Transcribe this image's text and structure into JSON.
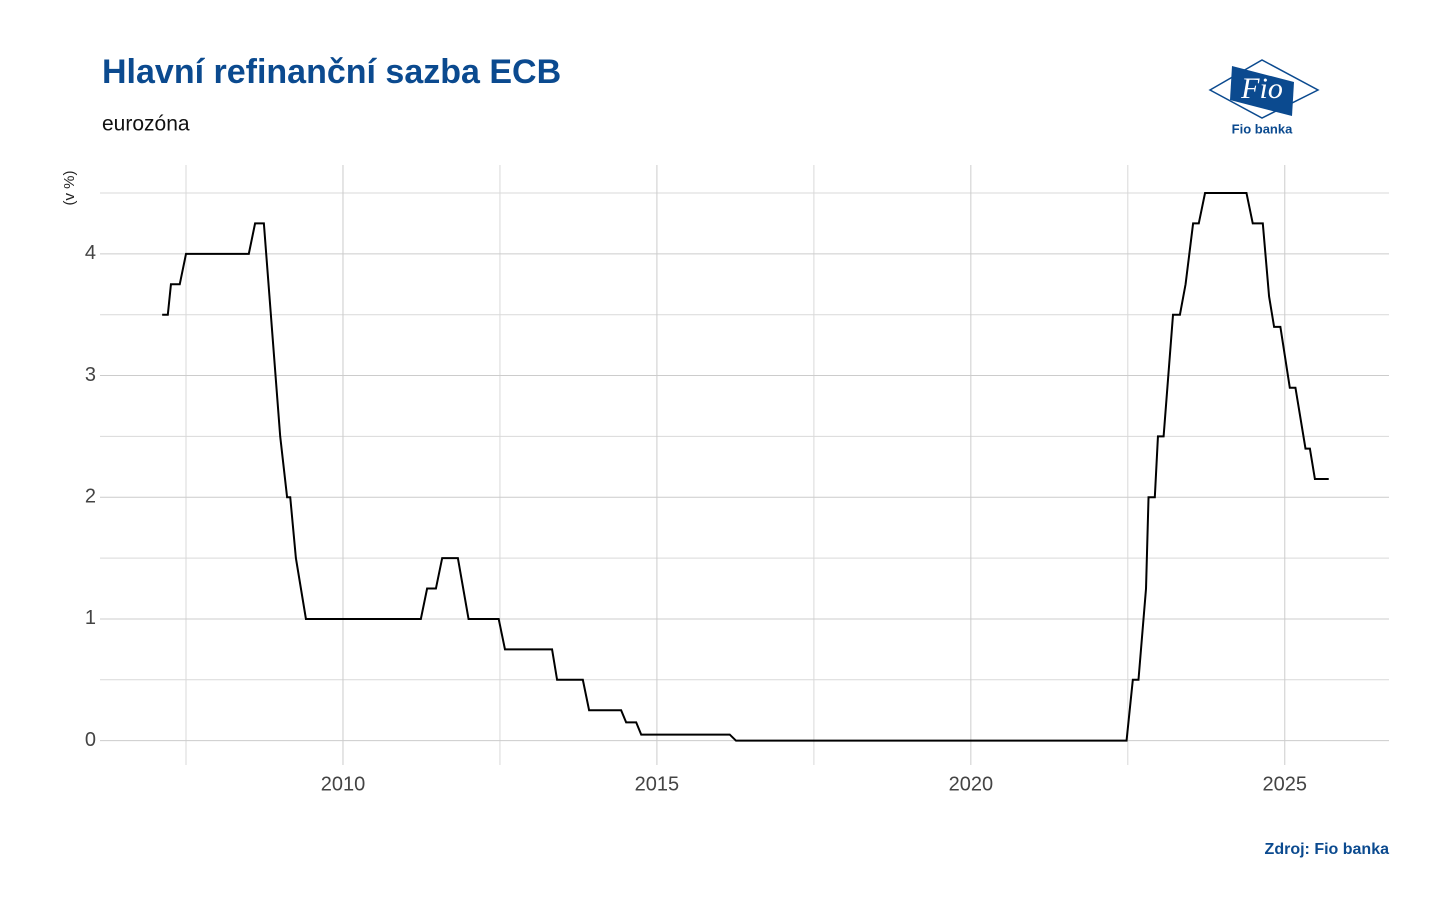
{
  "chart_data": {
    "type": "line",
    "title": "Hlavní refinanční sazba ECB",
    "subtitle": "eurozóna",
    "y_label": "(v %)",
    "source": "Zdroj: Fio banka",
    "logo": {
      "mark": "Fio",
      "name": "Fio banka"
    },
    "x": [
      2007.12,
      2007.21,
      2007.26,
      2007.4,
      2007.5,
      2008.5,
      2008.6,
      2008.74,
      2009.0,
      2009.11,
      2009.16,
      2009.25,
      2009.41,
      2011.24,
      2011.34,
      2011.48,
      2011.58,
      2011.83,
      2012.0,
      2012.48,
      2012.58,
      2013.33,
      2013.41,
      2013.82,
      2013.92,
      2014.43,
      2014.51,
      2014.67,
      2014.75,
      2016.16,
      2016.26,
      2022.48,
      2022.58,
      2022.67,
      2022.79,
      2022.83,
      2022.93,
      2022.98,
      2023.07,
      2023.22,
      2023.33,
      2023.42,
      2023.54,
      2023.63,
      2023.73,
      2024.39,
      2024.49,
      2024.65,
      2024.75,
      2024.83,
      2024.93,
      2025.08,
      2025.17,
      2025.33,
      2025.4,
      2025.48,
      2025.7
    ],
    "series": [
      {
        "name": "Hlavní refinanční sazba",
        "color": "#000000",
        "values": [
          3.5,
          3.5,
          3.75,
          3.75,
          4.0,
          4.0,
          4.25,
          4.25,
          2.5,
          2.0,
          2.0,
          1.5,
          1.0,
          1.0,
          1.25,
          1.25,
          1.5,
          1.5,
          1.0,
          1.0,
          0.75,
          0.75,
          0.5,
          0.5,
          0.25,
          0.25,
          0.15,
          0.15,
          0.05,
          0.05,
          0.0,
          0.0,
          0.5,
          0.5,
          1.25,
          2.0,
          2.0,
          2.5,
          2.5,
          3.5,
          3.5,
          3.75,
          4.25,
          4.25,
          4.5,
          4.5,
          4.25,
          4.25,
          3.65,
          3.4,
          3.4,
          2.9,
          2.9,
          2.4,
          2.4,
          2.15,
          2.15
        ]
      }
    ],
    "xlim": [
      2006.13,
      2026.66
    ],
    "xticks": [
      2010,
      2015,
      2020,
      2025
    ],
    "ylim": [
      -0.2,
      4.73
    ],
    "yticks": [
      0,
      1,
      2,
      3,
      4
    ],
    "grid": true
  }
}
